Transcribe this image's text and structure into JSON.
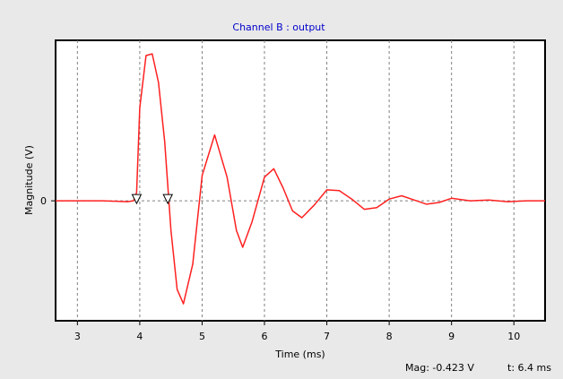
{
  "window": {
    "title": "Channel  B : output"
  },
  "readout": {
    "magnitude": "Mag: -0.423 V",
    "time": "t: 6.4 ms"
  },
  "colors": {
    "background": "#e9e9e9",
    "plot_background": "#ffffff",
    "trace": "#ff2020",
    "title": "#0000cc",
    "grid": "#808080",
    "text": "#000000"
  },
  "markers": [
    {
      "name": "marker-1",
      "x": 3.95,
      "icon": "down-triangle-icon"
    },
    {
      "name": "marker-2",
      "x": 4.45,
      "icon": "down-triangle-icon"
    }
  ],
  "chart_data": {
    "type": "line",
    "title": "Channel  B : output",
    "xlabel": "Time (ms)",
    "ylabel": "Magnitude (V)",
    "xlim": [
      2.65,
      10.5
    ],
    "ylim": [
      -1.42,
      1.9
    ],
    "xticks": [
      3,
      4,
      5,
      6,
      7,
      8,
      9,
      10
    ],
    "yticks": [
      0
    ],
    "grid": true,
    "series": [
      {
        "x": [
          2.65,
          3.0,
          3.4,
          3.8,
          3.9,
          3.95,
          4.0,
          4.1,
          4.2,
          4.3,
          4.4,
          4.5,
          4.6,
          4.7,
          4.85,
          5.0,
          5.2,
          5.4,
          5.55,
          5.65,
          5.8,
          6.0,
          6.15,
          6.3,
          6.45,
          6.6,
          6.8,
          7.0,
          7.2,
          7.4,
          7.6,
          7.8,
          8.0,
          8.2,
          8.4,
          8.6,
          8.8,
          9.0,
          9.3,
          9.6,
          9.9,
          10.2,
          10.5
        ],
        "y": [
          0.0,
          0.0,
          0.0,
          -0.01,
          0.0,
          0.1,
          1.1,
          1.72,
          1.74,
          1.4,
          0.7,
          -0.35,
          -1.05,
          -1.22,
          -0.75,
          0.3,
          0.78,
          0.28,
          -0.35,
          -0.55,
          -0.25,
          0.28,
          0.38,
          0.15,
          -0.12,
          -0.2,
          -0.05,
          0.13,
          0.12,
          0.02,
          -0.1,
          -0.08,
          0.02,
          0.06,
          0.01,
          -0.04,
          -0.02,
          0.03,
          0.0,
          0.01,
          -0.01,
          0.0,
          0.0
        ]
      }
    ]
  }
}
